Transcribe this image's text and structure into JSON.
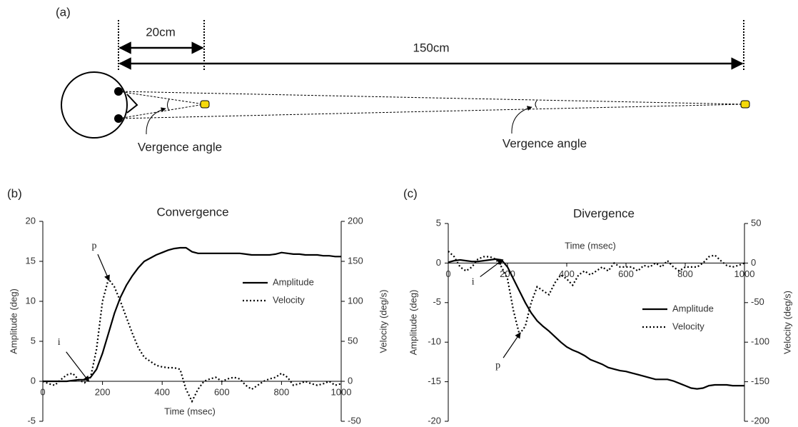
{
  "diagram": {
    "label": "(a)",
    "near_distance": "20cm",
    "far_distance": "150cm",
    "near_angle_label": "Vergence angle",
    "far_angle_label": "Vergence angle"
  },
  "chart_data": [
    {
      "type": "line",
      "panel_label": "(b)",
      "title": "Convergence",
      "xlabel": "Time (msec)",
      "ylabel": "Amplitude (deg)",
      "y2label": "Velocity (deg/s)",
      "xlim": [
        0,
        1000
      ],
      "xticks": [
        0,
        200,
        400,
        600,
        800,
        1000
      ],
      "ylim": [
        -5,
        20
      ],
      "yticks": [
        -5,
        0,
        5,
        10,
        15,
        20
      ],
      "y2lim": [
        -50,
        200
      ],
      "y2ticks": [
        -50,
        0,
        50,
        100,
        150,
        200
      ],
      "x": [
        0,
        20,
        40,
        60,
        80,
        100,
        120,
        140,
        160,
        180,
        200,
        220,
        240,
        260,
        280,
        300,
        320,
        340,
        360,
        380,
        400,
        420,
        440,
        460,
        480,
        500,
        520,
        540,
        560,
        580,
        600,
        620,
        640,
        660,
        680,
        700,
        720,
        740,
        760,
        780,
        800,
        820,
        840,
        860,
        880,
        900,
        920,
        940,
        960,
        980,
        1000
      ],
      "series": [
        {
          "name": "Amplitude",
          "color": "#000000",
          "style": "solid",
          "axis": "y",
          "values": [
            0,
            0,
            0,
            0,
            0,
            0.1,
            0.2,
            0.2,
            0.5,
            1.5,
            3.5,
            6,
            8.5,
            10.5,
            12,
            13.2,
            14.2,
            15,
            15.4,
            15.8,
            16.1,
            16.4,
            16.6,
            16.7,
            16.7,
            16.2,
            16,
            16,
            16,
            16,
            16,
            16,
            16,
            16,
            15.9,
            15.8,
            15.8,
            15.8,
            15.8,
            15.9,
            16.1,
            16,
            15.9,
            15.9,
            15.8,
            15.8,
            15.8,
            15.7,
            15.7,
            15.6,
            15.6
          ]
        },
        {
          "name": "Velocity",
          "color": "#000000",
          "style": "dotted",
          "axis": "y2",
          "values": [
            0,
            -3,
            -5,
            2,
            8,
            10,
            2,
            -2,
            5,
            40,
            100,
            128,
            118,
            100,
            80,
            60,
            42,
            30,
            25,
            20,
            18,
            17,
            17,
            15,
            -10,
            -25,
            -10,
            0,
            3,
            5,
            0,
            3,
            5,
            3,
            -5,
            -10,
            -5,
            0,
            3,
            5,
            10,
            5,
            -5,
            -3,
            0,
            -3,
            -5,
            -3,
            0,
            -5,
            -3
          ]
        }
      ],
      "annotations": [
        {
          "text": "i",
          "x": 150,
          "y": 0.2,
          "axis": "y"
        },
        {
          "text": "p",
          "x": 220,
          "y": 128,
          "axis": "y2"
        }
      ]
    },
    {
      "type": "line",
      "panel_label": "(c)",
      "title": "Divergence",
      "xlabel": "Time (msec)",
      "ylabel": "Amplitude (deg)",
      "y2label": "Velocity (deg/s)",
      "xlim": [
        0,
        1000
      ],
      "xticks": [
        0,
        200,
        400,
        600,
        800,
        1000
      ],
      "ylim": [
        -20,
        5
      ],
      "yticks": [
        -20,
        -15,
        -10,
        -5,
        0,
        5
      ],
      "y2lim": [
        -200,
        50
      ],
      "y2ticks": [
        -200,
        -150,
        -100,
        -50,
        0,
        50
      ],
      "x": [
        0,
        20,
        40,
        60,
        80,
        100,
        120,
        140,
        160,
        180,
        200,
        220,
        240,
        260,
        280,
        300,
        320,
        340,
        360,
        380,
        400,
        420,
        440,
        460,
        480,
        500,
        520,
        540,
        560,
        580,
        600,
        620,
        640,
        660,
        680,
        700,
        720,
        740,
        760,
        780,
        800,
        820,
        840,
        860,
        880,
        900,
        920,
        940,
        960,
        980,
        1000
      ],
      "series": [
        {
          "name": "Amplitude",
          "color": "#000000",
          "style": "solid",
          "axis": "y",
          "values": [
            0.1,
            0.3,
            0.4,
            0.3,
            0.2,
            0.2,
            0.3,
            0.4,
            0.5,
            0.4,
            -0.5,
            -2,
            -3.5,
            -5,
            -6.3,
            -7.3,
            -8,
            -8.6,
            -9.3,
            -10,
            -10.6,
            -11,
            -11.3,
            -11.7,
            -12.2,
            -12.5,
            -12.8,
            -13.2,
            -13.4,
            -13.6,
            -13.7,
            -13.9,
            -14.1,
            -14.3,
            -14.5,
            -14.7,
            -14.7,
            -14.7,
            -14.9,
            -15.2,
            -15.5,
            -15.8,
            -15.9,
            -15.8,
            -15.5,
            -15.4,
            -15.4,
            -15.4,
            -15.5,
            -15.5,
            -15.5
          ]
        },
        {
          "name": "Velocity",
          "color": "#000000",
          "style": "dotted",
          "axis": "y2",
          "values": [
            15,
            8,
            -5,
            -10,
            -5,
            5,
            8,
            8,
            5,
            -5,
            -20,
            -60,
            -90,
            -80,
            -50,
            -30,
            -35,
            -40,
            -25,
            -15,
            -20,
            -28,
            -15,
            -10,
            -15,
            -10,
            -5,
            -10,
            0,
            -5,
            -5,
            -5,
            -10,
            -3,
            -5,
            0,
            -5,
            3,
            -5,
            -10,
            -5,
            -5,
            -5,
            0,
            8,
            10,
            3,
            -3,
            -5,
            -3,
            0
          ]
        }
      ],
      "annotations": [
        {
          "text": "i",
          "x": 180,
          "y": 0.3,
          "axis": "y"
        },
        {
          "text": "p",
          "x": 240,
          "y": -90,
          "axis": "y2"
        }
      ]
    }
  ]
}
